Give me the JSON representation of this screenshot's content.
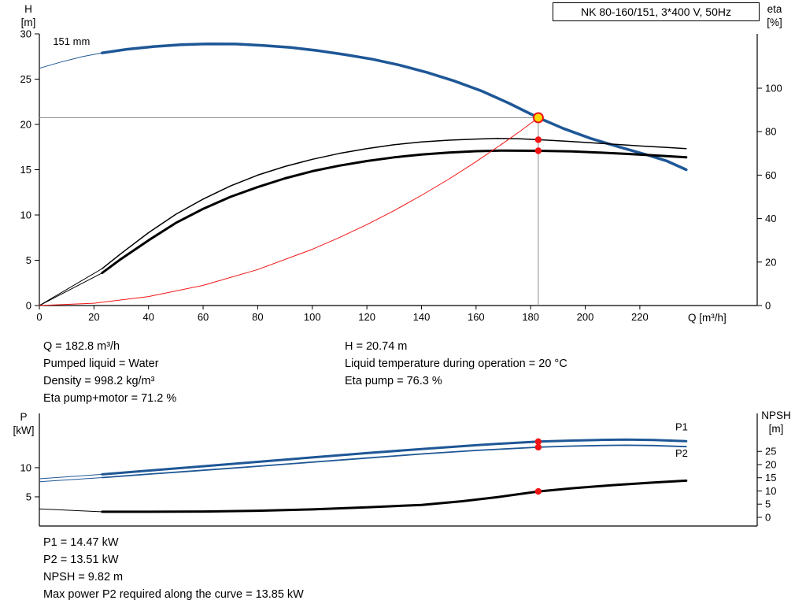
{
  "colors": {
    "curve_blue": "#1e5796",
    "curve_black": "#000000",
    "curve_red": "#f21414",
    "duty_yellow": "#ffd900",
    "duty_ring_red": "#f01414",
    "crosshair_gray": "#8f8f8f"
  },
  "info_top": {
    "col1": [
      "Q = 182.8 m³/h",
      "Pumped liquid = Water",
      "Density = 998.2 kg/m³",
      "Eta pump+motor = 71.2 %"
    ],
    "col2": [
      "H = 20.74 m",
      "Liquid temperature during operation = 20 °C",
      "Eta pump = 76.3 %"
    ]
  },
  "info_bottom": [
    "P1 = 14.47 kW",
    "P2 = 13.51 kW",
    "NPSH = 9.82 m",
    "Max power P2 required along the curve = 13.85 kW"
  ],
  "chart_data": [
    {
      "type": "line",
      "title": "NK 80-160/151, 3*400 V, 50Hz",
      "x_axis": {
        "label": "Q [m³/h]",
        "min": 0,
        "max": 263,
        "ticks": [
          0,
          20,
          40,
          60,
          80,
          100,
          120,
          140,
          160,
          180,
          200,
          220
        ]
      },
      "y_left": {
        "name": "H",
        "unit": "[m]",
        "min": 0,
        "max": 30,
        "ticks": [
          0,
          5,
          10,
          15,
          20,
          25,
          30
        ]
      },
      "y_right": {
        "name": "eta",
        "unit": "[%]",
        "min": 0,
        "max": 125,
        "ticks": [
          0,
          20,
          40,
          60,
          80,
          100
        ]
      },
      "grid": false,
      "crosshair": {
        "q": 182.8,
        "v": 20.74
      },
      "series": [
        {
          "name": "head-curve-151mm",
          "axis": "left",
          "color": "#1e5796",
          "width": 3.5,
          "label": {
            "text": "151 mm",
            "q": 5,
            "v": 28.8,
            "color": "#000000"
          },
          "lead_points": [
            [
              0,
              26.2
            ],
            [
              8,
              26.9
            ],
            [
              16,
              27.5
            ],
            [
              23,
              27.9
            ]
          ],
          "points": [
            [
              23,
              27.9
            ],
            [
              32,
              28.3
            ],
            [
              42,
              28.6
            ],
            [
              52,
              28.8
            ],
            [
              62,
              28.9
            ],
            [
              72,
              28.88
            ],
            [
              82,
              28.72
            ],
            [
              92,
              28.5
            ],
            [
              102,
              28.15
            ],
            [
              112,
              27.7
            ],
            [
              122,
              27.2
            ],
            [
              132,
              26.55
            ],
            [
              142,
              25.75
            ],
            [
              152,
              24.8
            ],
            [
              162,
              23.7
            ],
            [
              172,
              22.35
            ],
            [
              182.8,
              20.74
            ],
            [
              192,
              19.55
            ],
            [
              202,
              18.45
            ],
            [
              212,
              17.55
            ],
            [
              222,
              16.7
            ],
            [
              230,
              15.95
            ],
            [
              237,
              15.0
            ]
          ]
        },
        {
          "name": "eta-pump-curve",
          "axis": "right",
          "color": "#000000",
          "width": 1.5,
          "lead_points": [
            [
              0,
              0
            ],
            [
              23,
              17
            ]
          ],
          "points": [
            [
              23,
              17
            ],
            [
              30,
              24
            ],
            [
              40,
              33.5
            ],
            [
              50,
              42
            ],
            [
              60,
              49
            ],
            [
              70,
              55
            ],
            [
              80,
              60
            ],
            [
              90,
              64
            ],
            [
              100,
              67.3
            ],
            [
              110,
              70
            ],
            [
              120,
              72.2
            ],
            [
              130,
              74
            ],
            [
              140,
              75.3
            ],
            [
              150,
              76.1
            ],
            [
              160,
              76.6
            ],
            [
              168,
              76.9
            ],
            [
              176,
              76.7
            ],
            [
              182.8,
              76.3
            ],
            [
              192,
              75.7
            ],
            [
              202,
              74.9
            ],
            [
              212,
              74.1
            ],
            [
              222,
              73.3
            ],
            [
              230,
              72.7
            ],
            [
              237,
              72.2
            ]
          ]
        },
        {
          "name": "eta-pump-motor-curve",
          "axis": "right",
          "color": "#000000",
          "width": 3,
          "lead_points": [
            [
              0,
              0
            ],
            [
              23,
              15
            ]
          ],
          "points": [
            [
              23,
              15
            ],
            [
              30,
              21.5
            ],
            [
              40,
              30
            ],
            [
              50,
              38
            ],
            [
              60,
              44.5
            ],
            [
              70,
              50
            ],
            [
              80,
              54.5
            ],
            [
              90,
              58.5
            ],
            [
              100,
              61.8
            ],
            [
              110,
              64.4
            ],
            [
              120,
              66.5
            ],
            [
              130,
              68.2
            ],
            [
              140,
              69.5
            ],
            [
              150,
              70.4
            ],
            [
              160,
              71.0
            ],
            [
              170,
              71.3
            ],
            [
              182.8,
              71.2
            ],
            [
              195,
              70.9
            ],
            [
              205,
              70.4
            ],
            [
              215,
              69.8
            ],
            [
              225,
              69.1
            ],
            [
              237,
              68.2
            ]
          ]
        },
        {
          "name": "system-curve",
          "axis": "left",
          "color": "#f21414",
          "width": 1,
          "points": [
            [
              0,
              0
            ],
            [
              20,
              0.25
            ],
            [
              40,
              0.99
            ],
            [
              60,
              2.23
            ],
            [
              80,
              3.97
            ],
            [
              100,
              6.21
            ],
            [
              110,
              7.51
            ],
            [
              120,
              8.94
            ],
            [
              130,
              10.49
            ],
            [
              140,
              12.17
            ],
            [
              150,
              13.96
            ],
            [
              160,
              15.89
            ],
            [
              170,
              17.94
            ],
            [
              176,
              19.22
            ],
            [
              182.8,
              20.74
            ]
          ]
        }
      ],
      "markers": [
        {
          "q": 182.8,
          "v": 20.74,
          "axis": "left",
          "style": "duty"
        },
        {
          "q": 182.8,
          "v": 76.3,
          "axis": "right",
          "style": "dot"
        },
        {
          "q": 182.8,
          "v": 71.2,
          "axis": "right",
          "style": "dot"
        }
      ],
      "duty_point": {
        "Q_m3h": 182.8,
        "H_m": 20.74,
        "eta_pump_pct": 76.3,
        "eta_pump_motor_pct": 71.2
      }
    },
    {
      "type": "line",
      "x_axis": {
        "label": "",
        "min": 0,
        "max": 263,
        "ticks": []
      },
      "y_left": {
        "name": "P",
        "unit": "[kW]",
        "min": 0,
        "max": 19.3,
        "ticks": [
          5,
          10
        ]
      },
      "y_right": {
        "name": "NPSH",
        "unit": "[m]",
        "min": -3.3,
        "max": 39.4,
        "ticks": [
          0,
          5,
          10,
          15,
          20,
          25
        ]
      },
      "grid": false,
      "series": [
        {
          "name": "p1-curve",
          "axis": "left",
          "color": "#1e5796",
          "width": 3,
          "label": {
            "text": "P1",
            "q": 233,
            "v": 16.4
          },
          "lead_points": [
            [
              0,
              8.1
            ],
            [
              23,
              8.85
            ]
          ],
          "points": [
            [
              23,
              8.85
            ],
            [
              40,
              9.5
            ],
            [
              60,
              10.25
            ],
            [
              80,
              11.0
            ],
            [
              100,
              11.75
            ],
            [
              120,
              12.5
            ],
            [
              140,
              13.2
            ],
            [
              160,
              13.85
            ],
            [
              170,
              14.15
            ],
            [
              182.8,
              14.47
            ],
            [
              195,
              14.65
            ],
            [
              205,
              14.75
            ],
            [
              215,
              14.8
            ],
            [
              225,
              14.75
            ],
            [
              237,
              14.55
            ]
          ]
        },
        {
          "name": "p2-curve",
          "axis": "left",
          "color": "#1e5796",
          "width": 1.8,
          "label": {
            "text": "P2",
            "q": 233,
            "v": 11.9
          },
          "lead_points": [
            [
              0,
              7.6
            ],
            [
              23,
              8.3
            ]
          ],
          "points": [
            [
              23,
              8.3
            ],
            [
              40,
              8.9
            ],
            [
              60,
              9.55
            ],
            [
              80,
              10.25
            ],
            [
              100,
              10.95
            ],
            [
              120,
              11.65
            ],
            [
              140,
              12.35
            ],
            [
              160,
              12.95
            ],
            [
              182.8,
              13.51
            ],
            [
              195,
              13.7
            ],
            [
              205,
              13.8
            ],
            [
              215,
              13.85
            ],
            [
              225,
              13.8
            ],
            [
              237,
              13.6
            ]
          ]
        },
        {
          "name": "npsh-curve",
          "axis": "right",
          "color": "#000000",
          "width": 3,
          "lead_points": [
            [
              0,
              3.2
            ],
            [
              23,
              2.1
            ]
          ],
          "points": [
            [
              23,
              2.1
            ],
            [
              40,
              2.1
            ],
            [
              60,
              2.2
            ],
            [
              80,
              2.5
            ],
            [
              100,
              3.0
            ],
            [
              120,
              3.8
            ],
            [
              140,
              4.7
            ],
            [
              155,
              6.1
            ],
            [
              168,
              7.7
            ],
            [
              182.8,
              9.82
            ],
            [
              195,
              11.0
            ],
            [
              210,
              12.2
            ],
            [
              225,
              13.2
            ],
            [
              237,
              13.9
            ]
          ]
        }
      ],
      "markers": [
        {
          "q": 182.8,
          "v": 14.47,
          "axis": "left",
          "style": "dot"
        },
        {
          "q": 182.8,
          "v": 13.51,
          "axis": "left",
          "style": "dot"
        },
        {
          "q": 182.8,
          "v": 9.82,
          "axis": "right",
          "style": "dot"
        }
      ],
      "duty_point": {
        "P1_kW": 14.47,
        "P2_kW": 13.51,
        "NPSH_m": 9.82,
        "max_P2_kW": 13.85
      }
    }
  ]
}
